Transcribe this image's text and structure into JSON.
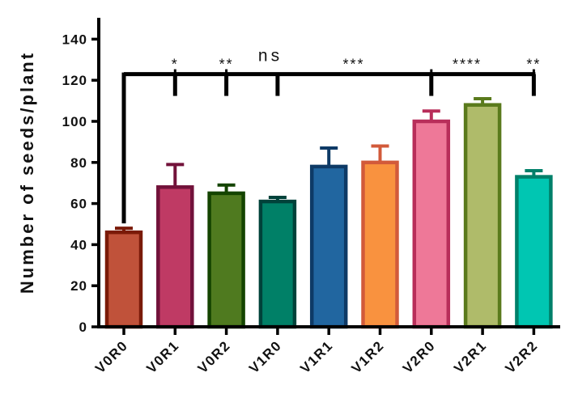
{
  "chart_data": {
    "type": "bar",
    "ylabel": "Number of seeds/plant",
    "xlabel": "",
    "ylim": [
      0,
      150
    ],
    "yticks": [
      0,
      20,
      40,
      60,
      80,
      100,
      120,
      140
    ],
    "categories": [
      "V0R0",
      "V0R1",
      "V0R2",
      "V1R0",
      "V1R1",
      "V1R2",
      "V2R0",
      "V2R1",
      "V2R2"
    ],
    "values": [
      46,
      68,
      65,
      61,
      78,
      80,
      100,
      108,
      73
    ],
    "errors": [
      2,
      11,
      4,
      2,
      9,
      8,
      5,
      3,
      3
    ],
    "bar_fills": [
      "#C0523A",
      "#BF3A64",
      "#4F7A1F",
      "#008067",
      "#2166A0",
      "#F9923F",
      "#EE7898",
      "#AFBB6A",
      "#00C6B2"
    ],
    "bar_edges": [
      "#7A1A08",
      "#72123A",
      "#144400",
      "#00423A",
      "#0E3A66",
      "#D25A3A",
      "#B82E5A",
      "#5A7A1C",
      "#00806A"
    ],
    "annotations": {
      "ns_label": "ns",
      "significance": [
        "",
        "*",
        "**",
        "",
        "***",
        "",
        "",
        "****",
        "**"
      ],
      "bracket_y": 123,
      "bracket_from_index": 0,
      "bracket_drops": [
        1,
        2,
        3,
        6,
        8
      ]
    }
  }
}
